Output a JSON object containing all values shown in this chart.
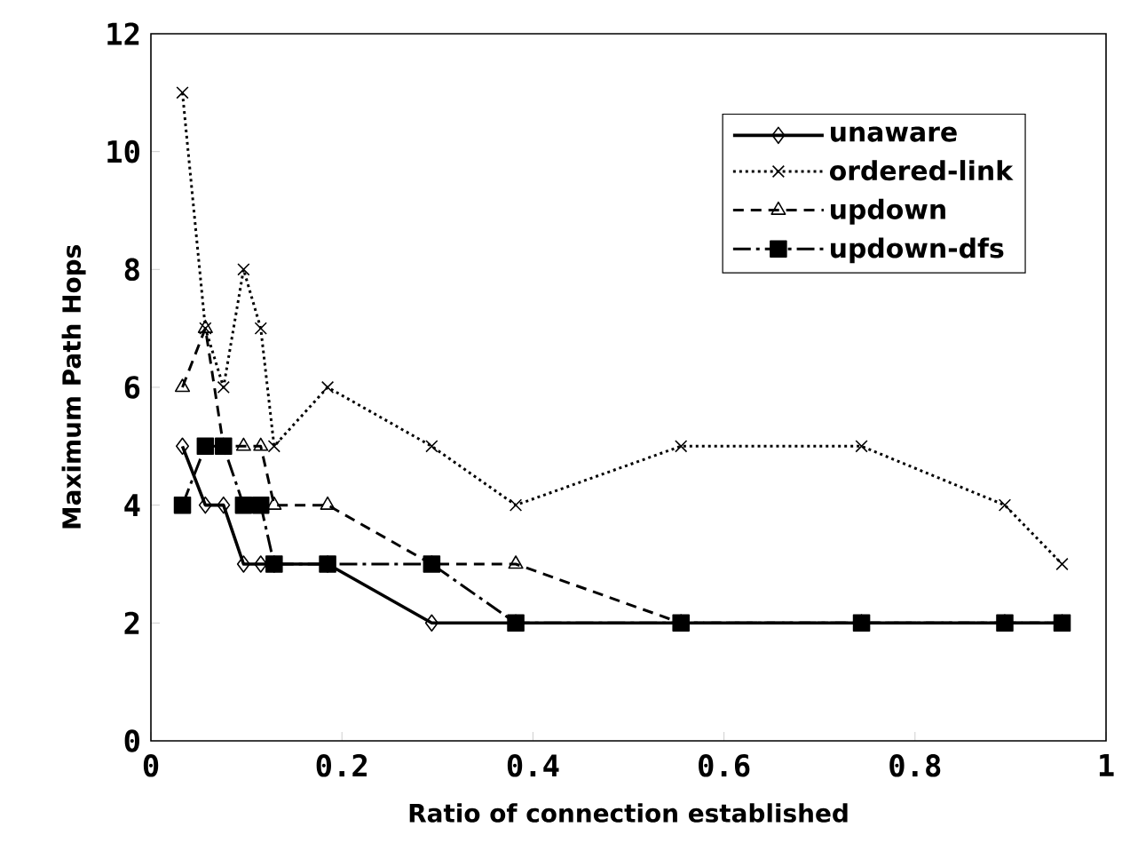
{
  "chart_data": {
    "type": "line",
    "xlabel": "Ratio of connection established",
    "ylabel": "Maximum Path Hops",
    "x": [
      0.033,
      0.057,
      0.076,
      0.097,
      0.115,
      0.129,
      0.185,
      0.294,
      0.382,
      0.555,
      0.744,
      0.894,
      0.954
    ],
    "series": [
      {
        "name": "unaware",
        "color": "#000000",
        "marker": "diamond",
        "line_style": "solid",
        "values": [
          5,
          4,
          4,
          3,
          3,
          3,
          3,
          2,
          2,
          2,
          2,
          2,
          2
        ]
      },
      {
        "name": "ordered-link",
        "color": "#000000",
        "marker": "cross",
        "line_style": "dotted",
        "values": [
          11,
          7,
          6,
          8,
          7,
          5,
          6,
          5,
          4,
          5,
          5,
          4,
          3
        ]
      },
      {
        "name": "updown",
        "color": "#000000",
        "marker": "triangle",
        "line_style": "dashed",
        "values": [
          6,
          7,
          5,
          5,
          5,
          4,
          4,
          3,
          3,
          2,
          2,
          2,
          2
        ]
      },
      {
        "name": "updown-dfs",
        "color": "#000000",
        "marker": "square",
        "line_style": "dashdot",
        "values": [
          4,
          5,
          5,
          4,
          4,
          3,
          3,
          3,
          2,
          2,
          2,
          2,
          2
        ]
      }
    ],
    "xlim": [
      0,
      1
    ],
    "xticks": [
      0,
      0.2,
      0.4,
      0.6,
      0.8,
      1
    ],
    "ylim": [
      0,
      12
    ],
    "yticks": [
      0,
      2,
      4,
      6,
      8,
      10,
      12
    ],
    "grid": false,
    "legend": "top right"
  }
}
